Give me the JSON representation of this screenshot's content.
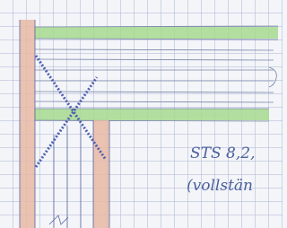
{
  "annotations": {
    "line1": "STS 8,2,",
    "line2": "(vollstän"
  }
}
